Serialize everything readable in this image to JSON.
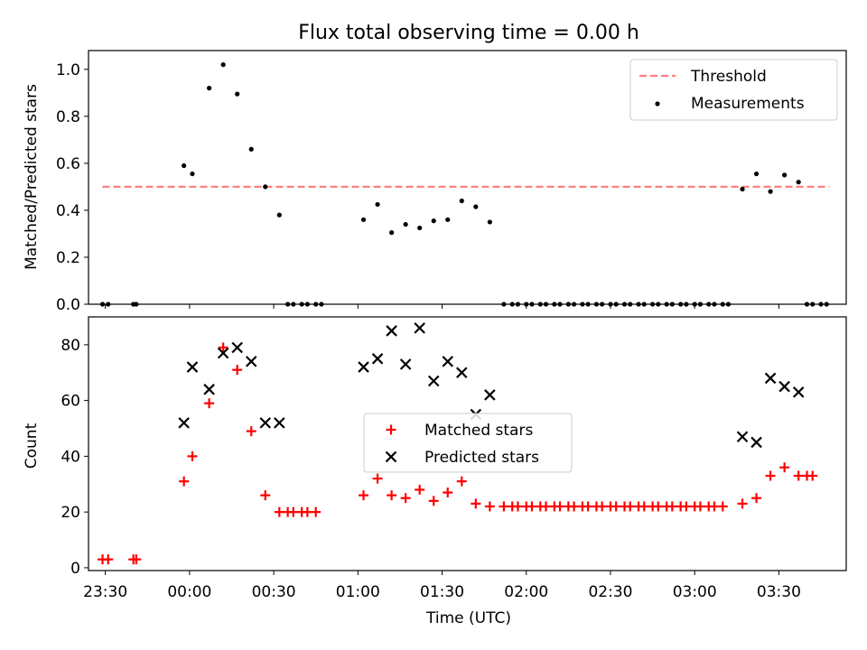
{
  "figure": {
    "title": "Flux total observing time = 0.00 h",
    "xlabel": "Time (UTC)",
    "xticks": [
      "23:30",
      "00:00",
      "00:30",
      "01:00",
      "01:30",
      "02:00",
      "02:30",
      "03:00",
      "03:30"
    ],
    "xrange": [
      "23:24",
      "03:54"
    ]
  },
  "chart_data": [
    {
      "type": "scatter",
      "ylabel": "Matched/Predicted stars",
      "ylim": [
        0,
        1.08
      ],
      "yticks": [
        "0.0",
        "0.2",
        "0.4",
        "0.6",
        "0.8",
        "1.0"
      ],
      "legend_position": "upper right",
      "threshold": {
        "name": "Threshold",
        "value": 0.5,
        "color": "#ff8080",
        "x_start": "23:29",
        "x_end": "03:48"
      },
      "series": [
        {
          "name": "Measurements",
          "color": "#000000",
          "points": [
            [
              "23:29",
              0.0
            ],
            [
              "23:31",
              0.0
            ],
            [
              "23:40",
              0.0
            ],
            [
              "23:41",
              0.0
            ],
            [
              "23:58",
              0.59
            ],
            [
              "00:01",
              0.555
            ],
            [
              "00:07",
              0.92
            ],
            [
              "00:12",
              1.02
            ],
            [
              "00:17",
              0.895
            ],
            [
              "00:22",
              0.66
            ],
            [
              "00:27",
              0.5
            ],
            [
              "00:32",
              0.38
            ],
            [
              "00:35",
              0.0
            ],
            [
              "00:37",
              0.0
            ],
            [
              "00:40",
              0.0
            ],
            [
              "00:42",
              0.0
            ],
            [
              "00:45",
              0.0
            ],
            [
              "00:47",
              0.0
            ],
            [
              "01:02",
              0.36
            ],
            [
              "01:07",
              0.425
            ],
            [
              "01:12",
              0.305
            ],
            [
              "01:17",
              0.34
            ],
            [
              "01:22",
              0.325
            ],
            [
              "01:27",
              0.355
            ],
            [
              "01:32",
              0.36
            ],
            [
              "01:37",
              0.44
            ],
            [
              "01:42",
              0.415
            ],
            [
              "01:47",
              0.35
            ],
            [
              "01:52",
              0.0
            ],
            [
              "01:55",
              0.0
            ],
            [
              "01:57",
              0.0
            ],
            [
              "02:00",
              0.0
            ],
            [
              "02:02",
              0.0
            ],
            [
              "02:05",
              0.0
            ],
            [
              "02:07",
              0.0
            ],
            [
              "02:10",
              0.0
            ],
            [
              "02:12",
              0.0
            ],
            [
              "02:15",
              0.0
            ],
            [
              "02:17",
              0.0
            ],
            [
              "02:20",
              0.0
            ],
            [
              "02:22",
              0.0
            ],
            [
              "02:25",
              0.0
            ],
            [
              "02:27",
              0.0
            ],
            [
              "02:30",
              0.0
            ],
            [
              "02:32",
              0.0
            ],
            [
              "02:35",
              0.0
            ],
            [
              "02:37",
              0.0
            ],
            [
              "02:40",
              0.0
            ],
            [
              "02:42",
              0.0
            ],
            [
              "02:45",
              0.0
            ],
            [
              "02:47",
              0.0
            ],
            [
              "02:50",
              0.0
            ],
            [
              "02:52",
              0.0
            ],
            [
              "02:55",
              0.0
            ],
            [
              "02:57",
              0.0
            ],
            [
              "03:00",
              0.0
            ],
            [
              "03:02",
              0.0
            ],
            [
              "03:05",
              0.0
            ],
            [
              "03:07",
              0.0
            ],
            [
              "03:10",
              0.0
            ],
            [
              "03:12",
              0.0
            ],
            [
              "03:17",
              0.49
            ],
            [
              "03:22",
              0.555
            ],
            [
              "03:27",
              0.48
            ],
            [
              "03:32",
              0.55
            ],
            [
              "03:37",
              0.52
            ],
            [
              "03:40",
              0.0
            ],
            [
              "03:42",
              0.0
            ],
            [
              "03:45",
              0.0
            ],
            [
              "03:47",
              0.0
            ]
          ]
        }
      ]
    },
    {
      "type": "scatter",
      "ylabel": "Count",
      "ylim": [
        -1,
        90
      ],
      "yticks": [
        "0",
        "20",
        "40",
        "60",
        "80"
      ],
      "legend_position": "center",
      "series": [
        {
          "name": "Matched stars",
          "color": "#ff0000",
          "marker": "plus",
          "points": [
            [
              "23:29",
              3
            ],
            [
              "23:31",
              3
            ],
            [
              "23:40",
              3
            ],
            [
              "23:41",
              3
            ],
            [
              "23:58",
              31
            ],
            [
              "00:01",
              40
            ],
            [
              "00:07",
              59
            ],
            [
              "00:12",
              79
            ],
            [
              "00:17",
              71
            ],
            [
              "00:22",
              49
            ],
            [
              "00:27",
              26
            ],
            [
              "00:32",
              20
            ],
            [
              "00:35",
              20
            ],
            [
              "00:37",
              20
            ],
            [
              "00:40",
              20
            ],
            [
              "00:42",
              20
            ],
            [
              "00:45",
              20
            ],
            [
              "01:02",
              26
            ],
            [
              "01:07",
              32
            ],
            [
              "01:12",
              26
            ],
            [
              "01:17",
              25
            ],
            [
              "01:22",
              28
            ],
            [
              "01:27",
              24
            ],
            [
              "01:32",
              27
            ],
            [
              "01:37",
              31
            ],
            [
              "01:42",
              23
            ],
            [
              "01:47",
              22
            ],
            [
              "01:52",
              22
            ],
            [
              "01:55",
              22
            ],
            [
              "01:57",
              22
            ],
            [
              "02:00",
              22
            ],
            [
              "02:02",
              22
            ],
            [
              "02:05",
              22
            ],
            [
              "02:07",
              22
            ],
            [
              "02:10",
              22
            ],
            [
              "02:12",
              22
            ],
            [
              "02:15",
              22
            ],
            [
              "02:17",
              22
            ],
            [
              "02:20",
              22
            ],
            [
              "02:22",
              22
            ],
            [
              "02:25",
              22
            ],
            [
              "02:27",
              22
            ],
            [
              "02:30",
              22
            ],
            [
              "02:32",
              22
            ],
            [
              "02:35",
              22
            ],
            [
              "02:37",
              22
            ],
            [
              "02:40",
              22
            ],
            [
              "02:42",
              22
            ],
            [
              "02:45",
              22
            ],
            [
              "02:47",
              22
            ],
            [
              "02:50",
              22
            ],
            [
              "02:52",
              22
            ],
            [
              "02:55",
              22
            ],
            [
              "02:57",
              22
            ],
            [
              "03:00",
              22
            ],
            [
              "03:02",
              22
            ],
            [
              "03:05",
              22
            ],
            [
              "03:07",
              22
            ],
            [
              "03:10",
              22
            ],
            [
              "03:17",
              23
            ],
            [
              "03:22",
              25
            ],
            [
              "03:27",
              33
            ],
            [
              "03:32",
              36
            ],
            [
              "03:37",
              33
            ],
            [
              "03:40",
              33
            ],
            [
              "03:42",
              33
            ]
          ]
        },
        {
          "name": "Predicted stars",
          "color": "#000000",
          "marker": "x",
          "points": [
            [
              "23:58",
              52
            ],
            [
              "00:01",
              72
            ],
            [
              "00:07",
              64
            ],
            [
              "00:12",
              77
            ],
            [
              "00:17",
              79
            ],
            [
              "00:22",
              74
            ],
            [
              "00:27",
              52
            ],
            [
              "00:32",
              52
            ],
            [
              "01:02",
              72
            ],
            [
              "01:07",
              75
            ],
            [
              "01:12",
              85
            ],
            [
              "01:17",
              73
            ],
            [
              "01:22",
              86
            ],
            [
              "01:27",
              67
            ],
            [
              "01:32",
              74
            ],
            [
              "01:37",
              70
            ],
            [
              "01:42",
              55
            ],
            [
              "01:47",
              62
            ],
            [
              "03:17",
              47
            ],
            [
              "03:22",
              45
            ],
            [
              "03:27",
              68
            ],
            [
              "03:32",
              65
            ],
            [
              "03:37",
              63
            ]
          ]
        }
      ]
    }
  ]
}
